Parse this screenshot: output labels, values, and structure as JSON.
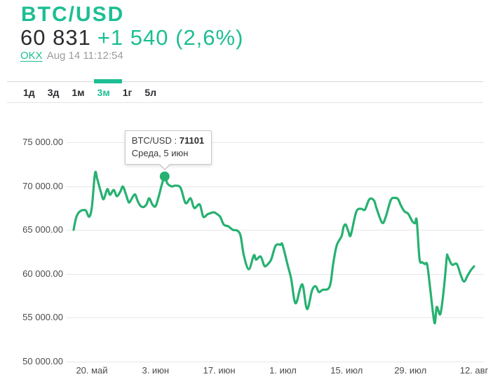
{
  "header": {
    "title": "BTC/USD",
    "price": "60 831",
    "change": "+1 540 (2,6%)",
    "source": "OKX",
    "timestamp": "Aug 14 11:12:54"
  },
  "tabs": [
    {
      "label": "1д",
      "active": false
    },
    {
      "label": "3д",
      "active": false
    },
    {
      "label": "1м",
      "active": false
    },
    {
      "label": "3м",
      "active": true
    },
    {
      "label": "1г",
      "active": false
    },
    {
      "label": "5л",
      "active": false
    }
  ],
  "tooltip": {
    "label": "BTC/USD :",
    "value": "71101",
    "subtitle": "Среда, 5 июн"
  },
  "colors": {
    "accent_green": "#1dbe93",
    "line_green": "#27b171",
    "grid": "#e7e7e7",
    "text_dark": "#2b2b30",
    "text_gray": "#9c9c9c",
    "axis_text": "#4b4b4b"
  },
  "chart_data": {
    "type": "line",
    "title": "BTC/USD 3м",
    "xlabel": "",
    "ylabel": "",
    "ylim": [
      50000,
      75000
    ],
    "grid": "horizontal",
    "legend": "none",
    "x_unit": "day-offset",
    "y_ticks": [
      {
        "label": "75 000.00",
        "value": 75000
      },
      {
        "label": "70 000.00",
        "value": 70000
      },
      {
        "label": "65 000.00",
        "value": 65000
      },
      {
        "label": "60 000.00",
        "value": 60000
      },
      {
        "label": "55 000.00",
        "value": 55000
      },
      {
        "label": "50 000.00",
        "value": 50000
      }
    ],
    "x_ticks": [
      {
        "label": "20. май",
        "day": 4
      },
      {
        "label": "3. июн",
        "day": 18
      },
      {
        "label": "17. июн",
        "day": 32
      },
      {
        "label": "1. июл",
        "day": 46
      },
      {
        "label": "15. июл",
        "day": 60
      },
      {
        "label": "29. июл",
        "day": 74
      },
      {
        "label": "12. авг",
        "day": 88
      }
    ],
    "series": [
      {
        "name": "BTC/USD",
        "points": [
          [
            0,
            65000
          ],
          [
            0.5,
            66300
          ],
          [
            1,
            66900
          ],
          [
            1.5,
            67150
          ],
          [
            2,
            67250
          ],
          [
            2.7,
            67200
          ],
          [
            3.4,
            66500
          ],
          [
            4,
            67600
          ],
          [
            4.7,
            71450
          ],
          [
            5.2,
            70800
          ],
          [
            6,
            69300
          ],
          [
            6.6,
            68500
          ],
          [
            7.4,
            69650
          ],
          [
            8,
            69000
          ],
          [
            8.8,
            69550
          ],
          [
            9.5,
            68850
          ],
          [
            10.3,
            69400
          ],
          [
            10.8,
            69950
          ],
          [
            11.4,
            69200
          ],
          [
            11.9,
            68400
          ],
          [
            12.3,
            68150
          ],
          [
            13.4,
            69050
          ],
          [
            14,
            68400
          ],
          [
            14.6,
            67800
          ],
          [
            15.3,
            67600
          ],
          [
            16,
            67900
          ],
          [
            16.6,
            68600
          ],
          [
            17.3,
            67900
          ],
          [
            18,
            67700
          ],
          [
            18.7,
            68800
          ],
          [
            19.3,
            70000
          ],
          [
            20,
            71101
          ],
          [
            20.6,
            70300
          ],
          [
            21.6,
            69950
          ],
          [
            22.3,
            70050
          ],
          [
            23.5,
            69800
          ],
          [
            24.6,
            68050
          ],
          [
            25.7,
            68600
          ],
          [
            26.5,
            67500
          ],
          [
            27.7,
            67900
          ],
          [
            28.5,
            66500
          ],
          [
            29.5,
            66800
          ],
          [
            30.8,
            67000
          ],
          [
            31.5,
            66800
          ],
          [
            32.2,
            66500
          ],
          [
            33,
            65600
          ],
          [
            34,
            65400
          ],
          [
            35,
            65000
          ],
          [
            36,
            64900
          ],
          [
            36.7,
            64300
          ],
          [
            37.4,
            62100
          ],
          [
            38.5,
            60500
          ],
          [
            39.6,
            62100
          ],
          [
            40.1,
            61600
          ],
          [
            41.1,
            61950
          ],
          [
            41.9,
            60900
          ],
          [
            42.5,
            61000
          ],
          [
            43.4,
            61600
          ],
          [
            44.4,
            63200
          ],
          [
            45.5,
            63300
          ],
          [
            45.9,
            63300
          ],
          [
            47,
            61050
          ],
          [
            47.8,
            59400
          ],
          [
            48.5,
            57000
          ],
          [
            49,
            56750
          ],
          [
            49.8,
            58350
          ],
          [
            50.4,
            58600
          ],
          [
            51.3,
            55950
          ],
          [
            52.4,
            58100
          ],
          [
            53.2,
            58550
          ],
          [
            53.9,
            57900
          ],
          [
            54.7,
            58150
          ],
          [
            55.9,
            58250
          ],
          [
            56.5,
            59000
          ],
          [
            57,
            61000
          ],
          [
            57.8,
            63200
          ],
          [
            58.9,
            64300
          ],
          [
            59.3,
            65300
          ],
          [
            59.8,
            65600
          ],
          [
            60.4,
            64800
          ],
          [
            60.9,
            64400
          ],
          [
            62.1,
            67050
          ],
          [
            63.2,
            67400
          ],
          [
            64,
            67300
          ],
          [
            65,
            68500
          ],
          [
            66,
            68350
          ],
          [
            66.6,
            67400
          ],
          [
            67.8,
            65800
          ],
          [
            68.6,
            66500
          ],
          [
            69.7,
            68400
          ],
          [
            70.6,
            68650
          ],
          [
            71.3,
            68500
          ],
          [
            71.9,
            67800
          ],
          [
            72.7,
            67100
          ],
          [
            73.5,
            66850
          ],
          [
            74.4,
            66000
          ],
          [
            75,
            65750
          ],
          [
            75.4,
            66050
          ],
          [
            76,
            61700
          ],
          [
            76.6,
            61300
          ],
          [
            77.2,
            61100
          ],
          [
            77.7,
            61000
          ],
          [
            78.4,
            58100
          ],
          [
            79,
            55400
          ],
          [
            79.4,
            54350
          ],
          [
            79.8,
            56200
          ],
          [
            80.6,
            55400
          ],
          [
            81.4,
            58500
          ],
          [
            82,
            61850
          ],
          [
            82.2,
            62000
          ],
          [
            82.9,
            61200
          ],
          [
            83.3,
            61000
          ],
          [
            84,
            61150
          ],
          [
            84.4,
            60900
          ],
          [
            85.1,
            59800
          ],
          [
            85.8,
            59100
          ],
          [
            86.6,
            59800
          ],
          [
            87.3,
            60400
          ],
          [
            88,
            60831
          ]
        ]
      }
    ],
    "marked_point": {
      "day": 20,
      "value": 71101,
      "label": "Среда, 5 июн"
    }
  }
}
